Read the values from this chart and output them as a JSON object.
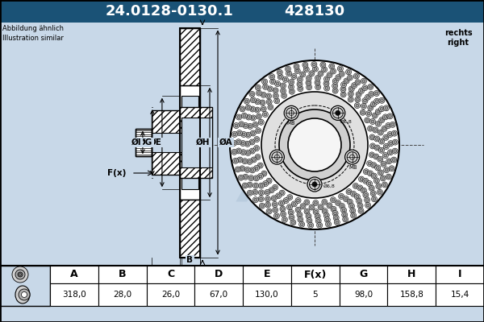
{
  "title_part_number": "24.0128-0130.1",
  "title_ref_number": "428130",
  "header_bg": "#1a5276",
  "header_text_color": "#ffffff",
  "bg_color": "#c8d8e8",
  "table_bg": "#ffffff",
  "table_headers": [
    "A",
    "B",
    "C",
    "D",
    "E",
    "F(x)",
    "G",
    "H",
    "I"
  ],
  "table_values": [
    "318,0",
    "28,0",
    "26,0",
    "67,0",
    "130,0",
    "5",
    "98,0",
    "158,8",
    "15,4"
  ],
  "note_left": "Abbildung ähnlich\nIllustration similar",
  "note_right": "rechts\nright",
  "hatch_color": "#555555",
  "line_color": "#000000",
  "dim_color": "#000000",
  "watermark_color": "#b0c4d8"
}
